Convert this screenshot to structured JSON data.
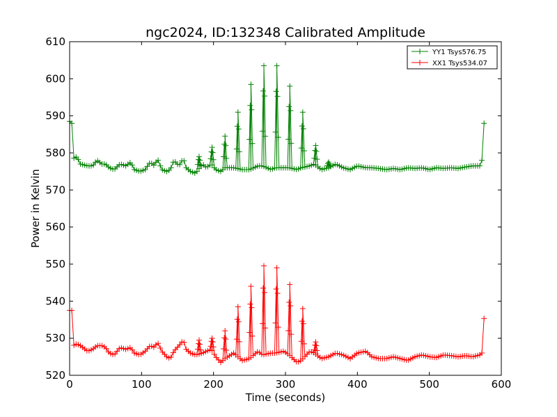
{
  "chart_data": {
    "type": "line",
    "title": "ngc2024, ID:132348 Calibrated Amplitude",
    "xlabel": "Time (seconds)",
    "ylabel": "Power in Kelvin",
    "xlim": [
      0,
      600
    ],
    "ylim": [
      520,
      610
    ],
    "xticks": [
      "0",
      "100",
      "200",
      "300",
      "400",
      "500",
      "600"
    ],
    "yticks": [
      "520",
      "530",
      "540",
      "550",
      "560",
      "570",
      "580",
      "590",
      "600",
      "610"
    ],
    "grid": false,
    "legend_position": "top-right",
    "marker": "plus",
    "x_sample_step": 3,
    "series": [
      {
        "name": "YY1 Tsys576.75",
        "color": "#008000",
        "base": [
          [
            0,
            588.5
          ],
          [
            3,
            588.0
          ],
          [
            5,
            578.5
          ],
          [
            10,
            579.0
          ],
          [
            15,
            577.0
          ],
          [
            25,
            576.5
          ],
          [
            32,
            576.5
          ],
          [
            38,
            578.0
          ],
          [
            45,
            577.0
          ],
          [
            50,
            577.0
          ],
          [
            55,
            576.0
          ],
          [
            62,
            575.5
          ],
          [
            70,
            577.0
          ],
          [
            78,
            576.5
          ],
          [
            85,
            577.5
          ],
          [
            90,
            575.5
          ],
          [
            98,
            575.0
          ],
          [
            105,
            575.5
          ],
          [
            112,
            577.5
          ],
          [
            118,
            576.5
          ],
          [
            122,
            578.5
          ],
          [
            128,
            575.5
          ],
          [
            135,
            575.0
          ],
          [
            140,
            575.5
          ],
          [
            145,
            578.0
          ],
          [
            152,
            576.5
          ],
          [
            158,
            578.5
          ],
          [
            162,
            576.0
          ],
          [
            168,
            575.0
          ],
          [
            175,
            574.5
          ],
          [
            185,
            577.0
          ],
          [
            190,
            576.0
          ],
          [
            197,
            577.0
          ],
          [
            203,
            575.5
          ],
          [
            210,
            575.0
          ],
          [
            216,
            576.0
          ],
          [
            228,
            576.0
          ],
          [
            240,
            575.5
          ],
          [
            250,
            575.5
          ],
          [
            262,
            576.5
          ],
          [
            268,
            576.5
          ],
          [
            280,
            575.5
          ],
          [
            286,
            576.0
          ],
          [
            298,
            576.0
          ],
          [
            305,
            576.0
          ],
          [
            316,
            575.5
          ],
          [
            322,
            576.0
          ],
          [
            334,
            576.5
          ],
          [
            340,
            577.0
          ],
          [
            350,
            575.5
          ],
          [
            360,
            576.0
          ],
          [
            370,
            577.0
          ],
          [
            380,
            576.0
          ],
          [
            390,
            575.5
          ],
          [
            400,
            576.5
          ],
          [
            412,
            576.0
          ],
          [
            420,
            576.0
          ],
          [
            430,
            575.8
          ],
          [
            440,
            575.5
          ],
          [
            450,
            575.8
          ],
          [
            460,
            575.5
          ],
          [
            470,
            576.0
          ],
          [
            480,
            575.8
          ],
          [
            490,
            576.0
          ],
          [
            500,
            575.5
          ],
          [
            510,
            576.0
          ],
          [
            520,
            575.8
          ],
          [
            530,
            576.0
          ],
          [
            540,
            575.8
          ],
          [
            550,
            576.2
          ],
          [
            560,
            576.5
          ],
          [
            570,
            576.5
          ],
          [
            573,
            578.0
          ],
          [
            575,
            588.0
          ],
          [
            578,
            588.0
          ]
        ],
        "peaks": [
          [
            180,
            579.0
          ],
          [
            198,
            581.5
          ],
          [
            216,
            584.5
          ],
          [
            234,
            591.0
          ],
          [
            252,
            598.5
          ],
          [
            270,
            603.5
          ],
          [
            288,
            603.5
          ],
          [
            306,
            598.0
          ],
          [
            324,
            591.0
          ],
          [
            342,
            582.0
          ],
          [
            360,
            577.5
          ]
        ]
      },
      {
        "name": "XX1 Tsys534.07",
        "color": "#ff0000",
        "base": [
          [
            0,
            537.5
          ],
          [
            3,
            537.5
          ],
          [
            5,
            528.0
          ],
          [
            10,
            528.5
          ],
          [
            15,
            528.0
          ],
          [
            25,
            526.5
          ],
          [
            32,
            527.0
          ],
          [
            38,
            528.0
          ],
          [
            45,
            528.0
          ],
          [
            50,
            527.5
          ],
          [
            55,
            526.0
          ],
          [
            62,
            525.5
          ],
          [
            70,
            527.5
          ],
          [
            78,
            527.0
          ],
          [
            85,
            527.5
          ],
          [
            90,
            526.0
          ],
          [
            98,
            525.5
          ],
          [
            105,
            526.5
          ],
          [
            112,
            528.0
          ],
          [
            118,
            527.5
          ],
          [
            122,
            529.0
          ],
          [
            128,
            526.5
          ],
          [
            135,
            525.0
          ],
          [
            140,
            524.5
          ],
          [
            145,
            526.5
          ],
          [
            152,
            528.0
          ],
          [
            158,
            529.5
          ],
          [
            162,
            527.0
          ],
          [
            168,
            526.0
          ],
          [
            175,
            525.5
          ],
          [
            185,
            526.0
          ],
          [
            190,
            526.5
          ],
          [
            197,
            527.0
          ],
          [
            203,
            525.0
          ],
          [
            210,
            523.5
          ],
          [
            216,
            524.5
          ],
          [
            228,
            526.0
          ],
          [
            240,
            524.0
          ],
          [
            250,
            524.5
          ],
          [
            262,
            526.5
          ],
          [
            268,
            525.5
          ],
          [
            280,
            526.0
          ],
          [
            286,
            526.0
          ],
          [
            298,
            526.5
          ],
          [
            305,
            525.5
          ],
          [
            316,
            523.5
          ],
          [
            322,
            524.0
          ],
          [
            334,
            526.5
          ],
          [
            340,
            526.0
          ],
          [
            350,
            524.5
          ],
          [
            360,
            525.0
          ],
          [
            370,
            526.0
          ],
          [
            380,
            525.5
          ],
          [
            390,
            524.5
          ],
          [
            400,
            526.0
          ],
          [
            412,
            526.5
          ],
          [
            420,
            525.0
          ],
          [
            430,
            524.5
          ],
          [
            440,
            524.5
          ],
          [
            450,
            525.0
          ],
          [
            460,
            524.5
          ],
          [
            470,
            524.0
          ],
          [
            480,
            525.0
          ],
          [
            490,
            525.5
          ],
          [
            500,
            525.0
          ],
          [
            510,
            524.8
          ],
          [
            520,
            525.5
          ],
          [
            530,
            525.3
          ],
          [
            540,
            525.0
          ],
          [
            550,
            525.3
          ],
          [
            560,
            525.0
          ],
          [
            570,
            525.5
          ],
          [
            573,
            526.0
          ],
          [
            575,
            535.5
          ],
          [
            578,
            535.0
          ]
        ],
        "peaks": [
          [
            180,
            529.5
          ],
          [
            198,
            530.0
          ],
          [
            216,
            532.0
          ],
          [
            234,
            538.5
          ],
          [
            252,
            544.0
          ],
          [
            270,
            549.5
          ],
          [
            288,
            549.0
          ],
          [
            306,
            544.5
          ],
          [
            324,
            538.0
          ],
          [
            342,
            529.0
          ]
        ]
      }
    ]
  }
}
